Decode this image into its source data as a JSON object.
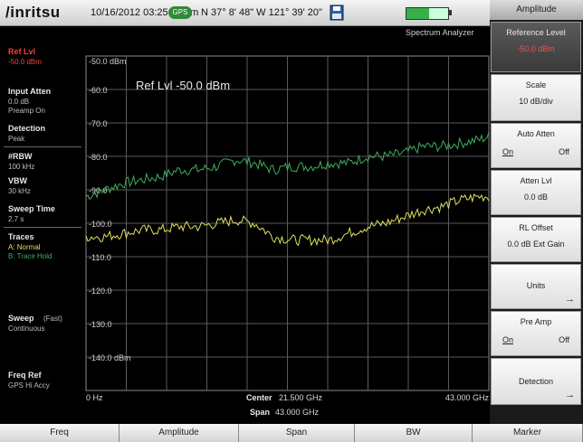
{
  "header": {
    "brand": "/inritsu",
    "datetime": "10/16/2012 03:25:29 pm",
    "gps_badge": "GPS",
    "coordinates": "N 37° 8' 48\" W 121° 39' 20\"",
    "mode": "Spectrum Analyzer",
    "battery_level": 0.55,
    "colors": {
      "brand": "#111111",
      "gps": "#2d8a3a",
      "battery": "#35b04a"
    }
  },
  "left_panel": {
    "ref_lvl": {
      "label": "Ref Lvl",
      "value": "-50.0 dBm"
    },
    "input_atten": {
      "label": "Input Atten",
      "value1": "0.0 dB",
      "value2": "Preamp On"
    },
    "detection": {
      "label": "Detection",
      "value": "Peak"
    },
    "rbw": {
      "label": "#RBW",
      "value": "100 kHz"
    },
    "vbw": {
      "label": "VBW",
      "value": "30 kHz"
    },
    "sweep_time": {
      "label": "Sweep Time",
      "value": "2.7 s"
    },
    "traces": {
      "label": "Traces",
      "a": "A: Normal",
      "b": "B: Trace Hold"
    },
    "sweep": {
      "label": "Sweep",
      "mode": "(Fast)",
      "value": "Continuous"
    },
    "freq_ref": {
      "label": "Freq Ref",
      "value": "GPS Hi Accy"
    },
    "colors": {
      "ref_lvl": "#ff3c3c",
      "trace_a": "#e0e060",
      "trace_b": "#3fae5a"
    }
  },
  "chart_data": {
    "type": "line",
    "annotation": "Ref Lvl -50.0 dBm",
    "y_tick_labels": [
      "-50.0 dBm",
      "-60.0",
      "-70.0",
      "-80.0",
      "-90.0",
      "-100.0",
      "-110.0",
      "-120.0",
      "-130.0",
      "-140.0 dBm"
    ],
    "x_start_label": "0 Hz",
    "x_end_label": "43.000 GHz",
    "center_label": "Center",
    "center_value": "21.500 GHz",
    "span_label": "Span",
    "span_value": "43.000 GHz",
    "xlim": [
      0,
      43.0
    ],
    "ylim": [
      -150,
      -50
    ],
    "grid": true,
    "series": [
      {
        "color": "#3fae5a",
        "x": [
          0,
          2,
          4,
          6,
          8,
          10,
          12,
          14,
          16,
          18,
          20,
          22,
          24,
          26,
          28,
          30,
          32,
          34,
          36,
          38,
          40,
          42,
          43
        ],
        "values": [
          -92,
          -90,
          -88,
          -87,
          -86,
          -84,
          -84,
          -83,
          -81,
          -82,
          -84,
          -83,
          -83,
          -82,
          -82,
          -80,
          -80,
          -79,
          -77,
          -77,
          -76,
          -75,
          -74
        ]
      },
      {
        "color": "#e0e060",
        "x": [
          0,
          2,
          4,
          6,
          8,
          10,
          12,
          14,
          16,
          18,
          20,
          22,
          24,
          26,
          28,
          30,
          32,
          34,
          36,
          38,
          40,
          42,
          43
        ],
        "values": [
          -104,
          -104,
          -103,
          -102,
          -102,
          -101,
          -101,
          -100,
          -99,
          -100,
          -104,
          -105,
          -105,
          -105,
          -103,
          -101,
          -100,
          -98,
          -96,
          -95,
          -93,
          -92,
          -92
        ]
      }
    ]
  },
  "right_panel": {
    "title": "Amplitude",
    "keys": [
      {
        "label": "Reference Level",
        "value": "-50.0 dBm"
      },
      {
        "label": "Scale",
        "value": "10 dB/div"
      },
      {
        "label": "Auto Atten",
        "on": "On",
        "off": "Off"
      },
      {
        "label": "Atten Lvl",
        "value": "0.0 dB"
      },
      {
        "label": "RL Offset",
        "value": "0.0 dB Ext Gain"
      },
      {
        "label": "Units",
        "arrow": "→"
      },
      {
        "label": "Pre Amp",
        "on": "On",
        "off": "Off"
      },
      {
        "label": "Detection",
        "arrow": "→"
      }
    ]
  },
  "bottom_menu": {
    "tabs": [
      "Freq",
      "Amplitude",
      "Span",
      "BW",
      "Marker"
    ]
  }
}
